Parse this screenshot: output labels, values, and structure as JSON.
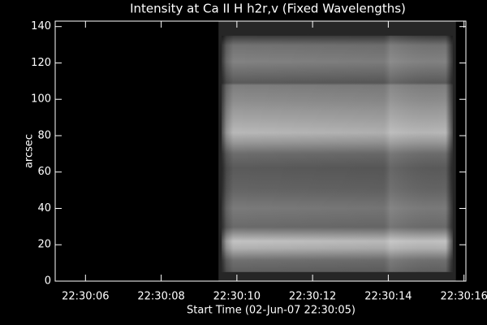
{
  "chart_data": {
    "type": "image",
    "title": "Intensity at Ca II H h2r,v (Fixed Wavelengths)",
    "x_label": "Start Time (02-Jun-07 22:30:05)",
    "y_label": "arcsec",
    "xlim": [
      5.2,
      16.05
    ],
    "ylim": [
      0,
      143
    ],
    "xticks": [
      {
        "value": 6,
        "label": "22:30:06"
      },
      {
        "value": 8,
        "label": "22:30:08"
      },
      {
        "value": 10,
        "label": "22:30:10"
      },
      {
        "value": 12,
        "label": "22:30:12"
      },
      {
        "value": 14,
        "label": "22:30:14"
      },
      {
        "value": 16,
        "label": "22:30:16"
      }
    ],
    "yticks": [
      0,
      20,
      40,
      60,
      80,
      100,
      120,
      140
    ],
    "image": {
      "xlim": [
        9.6,
        15.7
      ],
      "ylim": [
        5,
        135
      ]
    }
  }
}
